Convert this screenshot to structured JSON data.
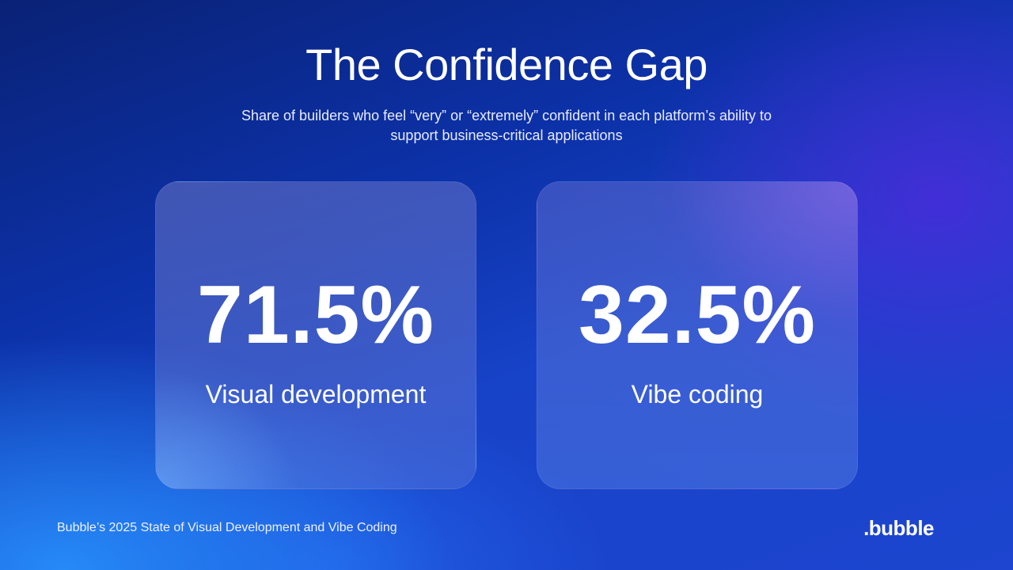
{
  "slide": {
    "title": "The Confidence Gap",
    "subtitle": "Share of builders who feel “very” or “extremely” confident in each platform’s ability to support business-critical applications"
  },
  "stats": [
    {
      "value": "71.5%",
      "label": "Visual development"
    },
    {
      "value": "32.5%",
      "label": "Vibe coding"
    }
  ],
  "footer": {
    "source": "Bubble’s 2025 State of Visual Development and Vibe Coding",
    "logo": ".bubble"
  }
}
